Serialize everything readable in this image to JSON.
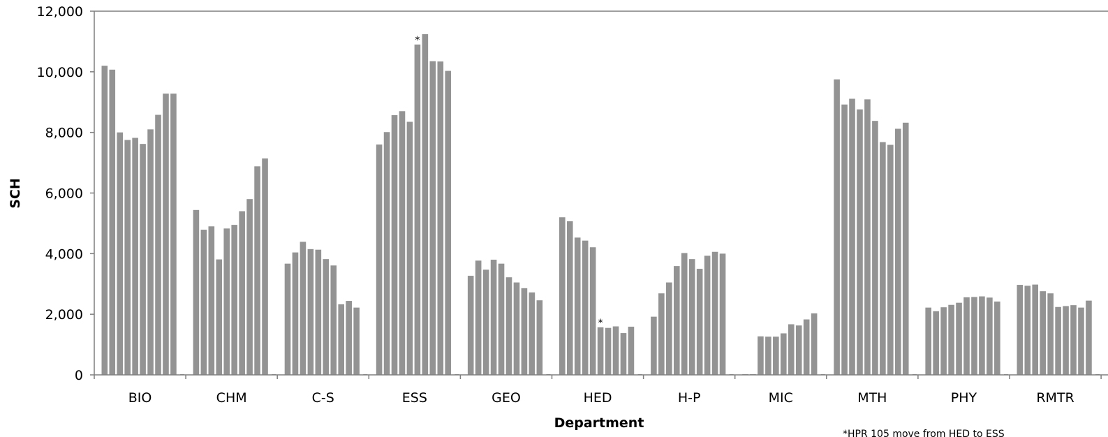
{
  "chart_data": {
    "type": "bar",
    "title": "",
    "xlabel": "Department",
    "ylabel": "SCH",
    "ylim": [
      0,
      12000
    ],
    "yticks": [
      "0",
      "2,000",
      "4,000",
      "6,000",
      "8,000",
      "10,000",
      "12,000"
    ],
    "grid": false,
    "legend": "none",
    "bar_color": "#939393",
    "annotation": "*HPR 105 move from HED to ESS",
    "categories": [
      {
        "label": "BIO",
        "values": [
          10200,
          10070,
          8000,
          7750,
          7820,
          7620,
          8100,
          8580,
          9280,
          9280
        ]
      },
      {
        "label": "CHM",
        "values": [
          5440,
          4790,
          4900,
          3810,
          4830,
          4950,
          5400,
          5800,
          6880,
          7140
        ]
      },
      {
        "label": "C-S",
        "values": [
          3670,
          4040,
          4390,
          4150,
          4130,
          3820,
          3610,
          2330,
          2440,
          2220
        ]
      },
      {
        "label": "ESS",
        "values": [
          7600,
          8010,
          8570,
          8700,
          8350,
          10900,
          11240,
          10350,
          10340,
          10030
        ],
        "starred_index": 5
      },
      {
        "label": "GEO",
        "values": [
          3270,
          3770,
          3470,
          3800,
          3670,
          3220,
          3050,
          2860,
          2720,
          2460
        ]
      },
      {
        "label": "HED",
        "values": [
          5200,
          5070,
          4530,
          4430,
          4210,
          1570,
          1550,
          1600,
          1380,
          1590
        ],
        "starred_index": 5
      },
      {
        "label": "H-P",
        "values": [
          1920,
          2690,
          3050,
          3590,
          4020,
          3820,
          3500,
          3930,
          4060,
          4000
        ]
      },
      {
        "label": "MIC",
        "values": [
          0,
          0,
          1270,
          1260,
          1260,
          1370,
          1670,
          1630,
          1830,
          2030
        ]
      },
      {
        "label": "MTH",
        "values": [
          9750,
          8920,
          9110,
          8760,
          9090,
          8380,
          7680,
          7590,
          8120,
          8320
        ]
      },
      {
        "label": "PHY",
        "values": [
          2220,
          2100,
          2230,
          2310,
          2380,
          2560,
          2570,
          2590,
          2550,
          2420
        ]
      },
      {
        "label": "RMTR",
        "values": [
          2970,
          2940,
          2980,
          2760,
          2690,
          2240,
          2270,
          2300,
          2220,
          2450
        ]
      }
    ]
  }
}
